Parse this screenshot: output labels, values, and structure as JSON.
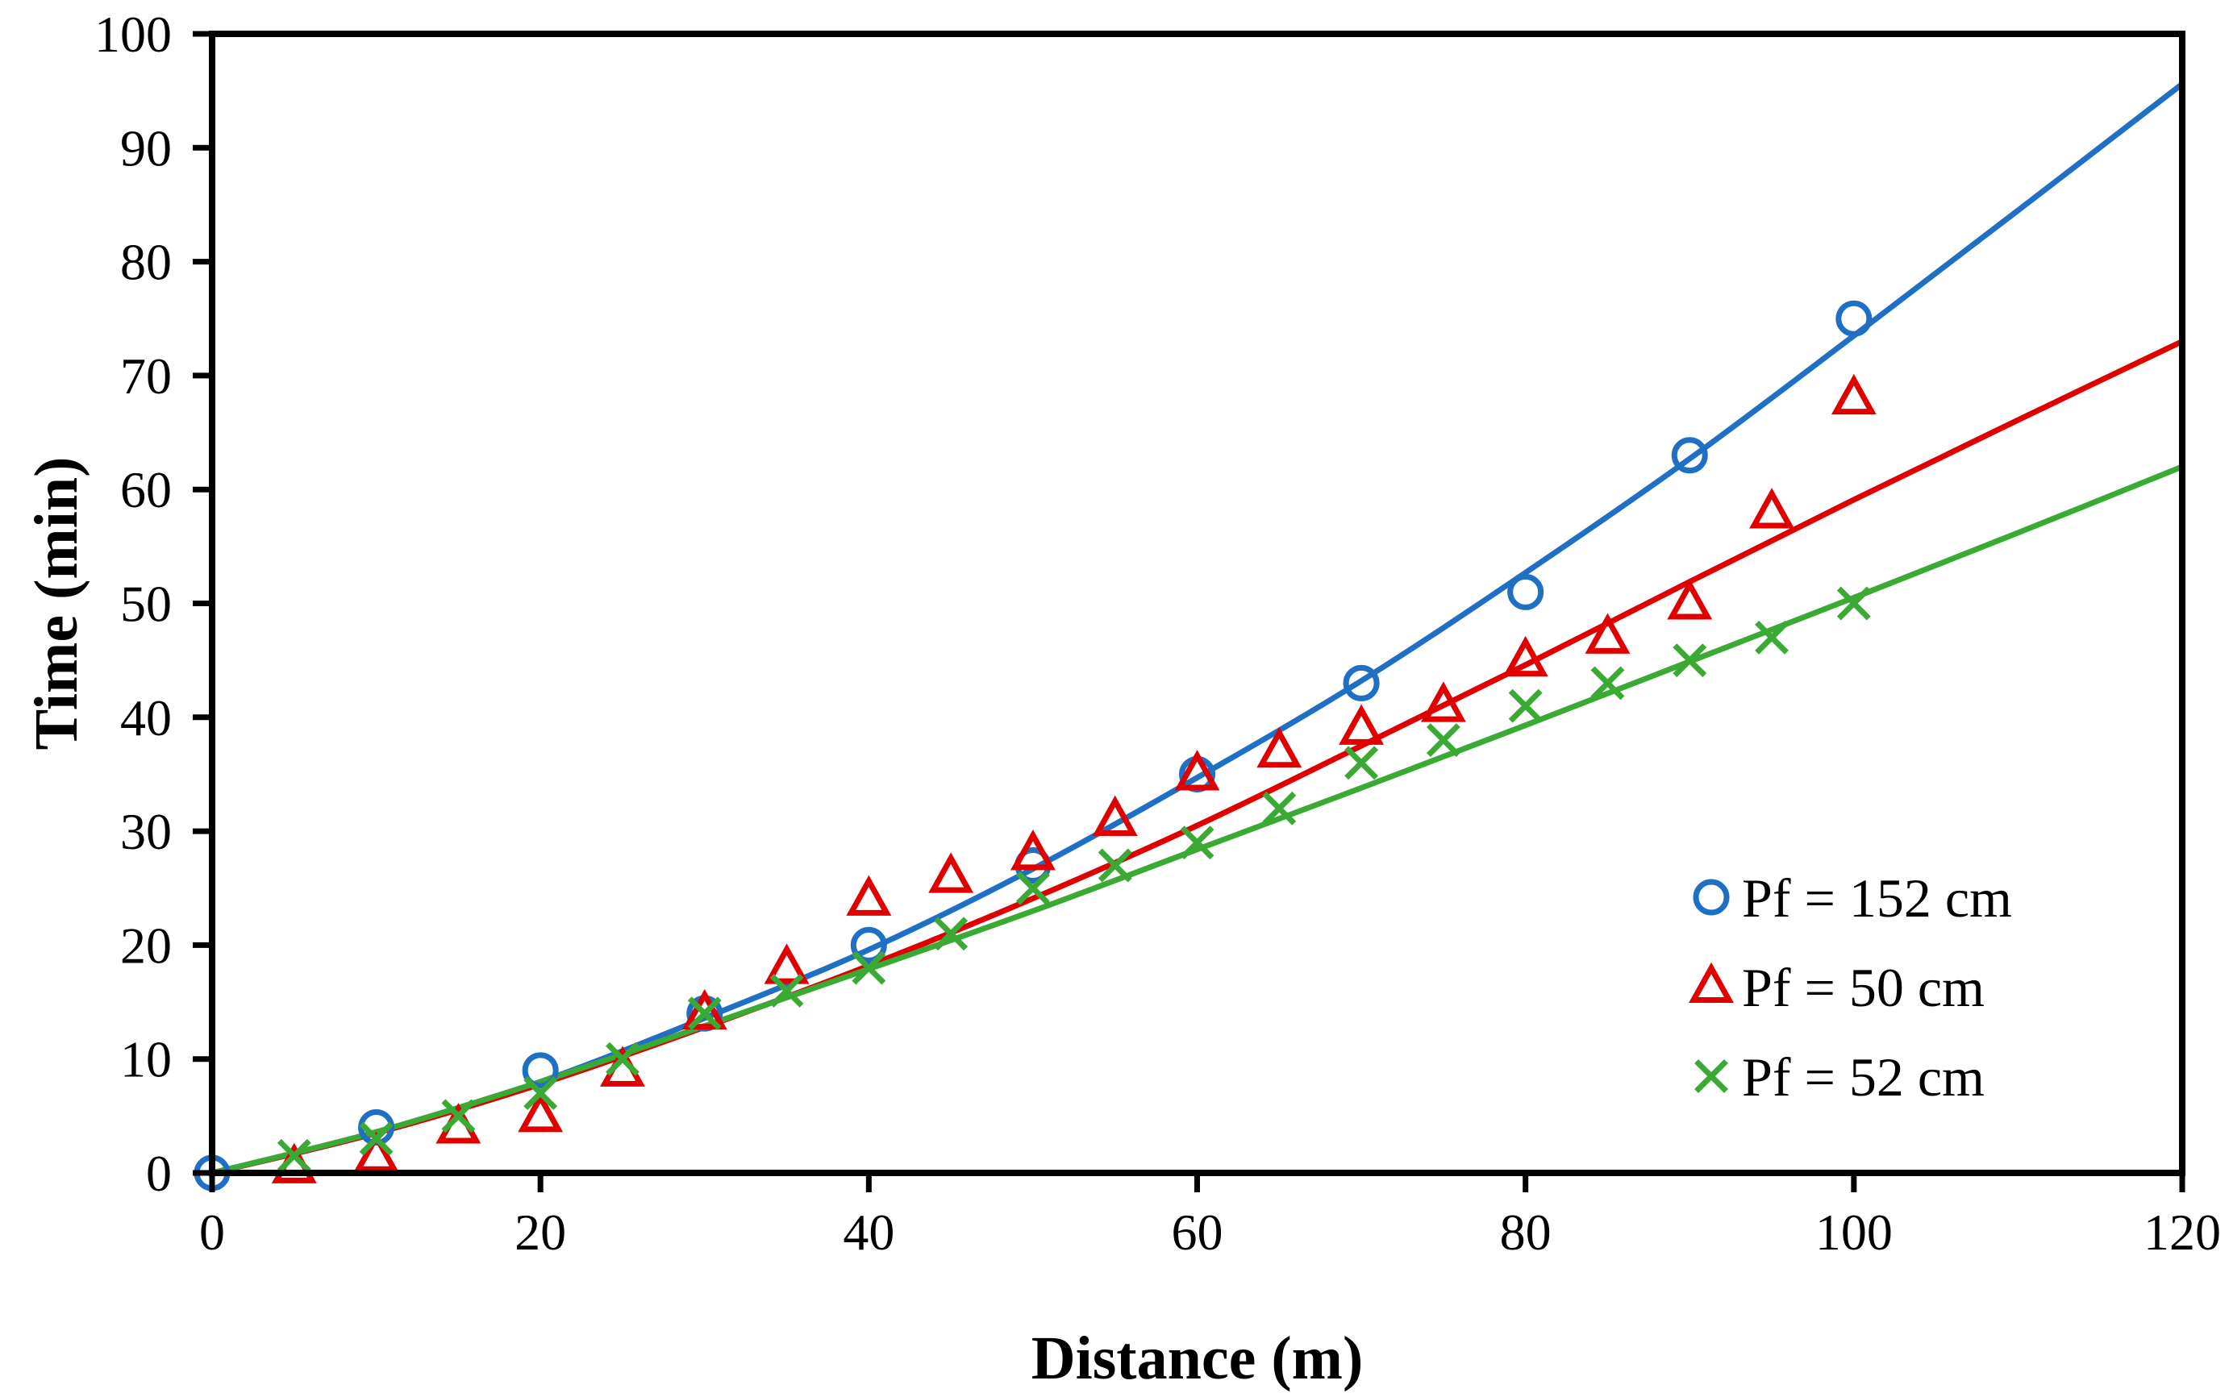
{
  "chart_data": {
    "type": "scatter",
    "title": "",
    "xlabel": "Distance (m)",
    "ylabel": "Time (min)",
    "xlim": [
      0,
      120
    ],
    "ylim": [
      0,
      100
    ],
    "xticks": [
      "0",
      "20",
      "40",
      "60",
      "80",
      "100",
      "120"
    ],
    "yticks": [
      "0",
      "10",
      "20",
      "30",
      "40",
      "50",
      "60",
      "70",
      "80",
      "90",
      "100"
    ],
    "grid": false,
    "legend_position": "bottom-right",
    "series": [
      {
        "name": "Pf = 152 cm",
        "marker": "circle",
        "color": "#1f6fc4",
        "x": [
          0,
          10,
          20,
          30,
          40,
          50,
          60,
          70,
          80,
          90,
          100
        ],
        "y": [
          0,
          4,
          9,
          14,
          20,
          27,
          35,
          43,
          51,
          63,
          75
        ],
        "fit": {
          "x": [
            0,
            10,
            20,
            30,
            40,
            50,
            60,
            70,
            80,
            90,
            100,
            110,
            120
          ],
          "y": [
            0,
            3.5,
            8,
            13.6,
            19.6,
            26.7,
            34.7,
            43.2,
            52.7,
            62.7,
            73.5,
            84.5,
            95.6
          ]
        }
      },
      {
        "name": "Pf = 50 cm",
        "marker": "triangle",
        "color": "#e00000",
        "x": [
          5,
          10,
          15,
          20,
          25,
          30,
          35,
          40,
          45,
          50,
          55,
          60,
          65,
          70,
          75,
          80,
          85,
          90,
          95,
          100
        ],
        "y": [
          0.5,
          1.5,
          4,
          5,
          9,
          14,
          18,
          24,
          26,
          28,
          31,
          35,
          37,
          39,
          41,
          45,
          47,
          50,
          58,
          68
        ],
        "fit": {
          "x": [
            0,
            10,
            20,
            30,
            40,
            50,
            60,
            70,
            80,
            90,
            100,
            110,
            120
          ],
          "y": [
            0,
            3.5,
            7.8,
            12.8,
            18.2,
            24.1,
            30.5,
            37.5,
            44.6,
            51.9,
            59.1,
            66.1,
            73
          ]
        }
      },
      {
        "name": "Pf = 52 cm",
        "marker": "x",
        "color": "#3aaa35",
        "x": [
          5,
          10,
          15,
          20,
          25,
          30,
          35,
          40,
          45,
          50,
          55,
          60,
          65,
          70,
          75,
          80,
          85,
          90,
          95,
          100
        ],
        "y": [
          1.5,
          3,
          5,
          7,
          10,
          14,
          16,
          18,
          21,
          25,
          27,
          29,
          32,
          36,
          38,
          41,
          43,
          45,
          47,
          50
        ],
        "fit": {
          "x": [
            0,
            10,
            20,
            30,
            40,
            50,
            60,
            70,
            80,
            90,
            100,
            110,
            120
          ],
          "y": [
            0,
            3.6,
            8,
            12.9,
            17.9,
            23,
            28.4,
            33.8,
            39.3,
            44.9,
            50.5,
            56.2,
            62
          ]
        }
      }
    ]
  }
}
